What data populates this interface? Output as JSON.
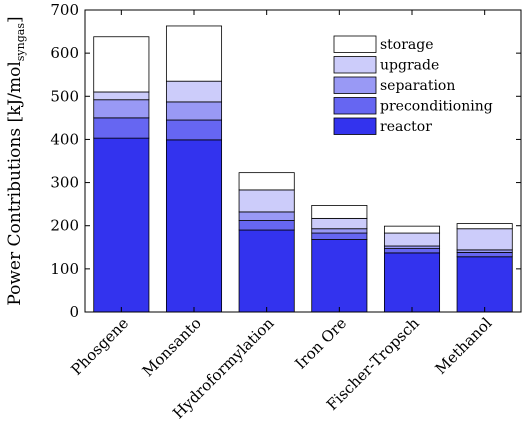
{
  "chart_data": {
    "type": "bar",
    "stacked": true,
    "categories": [
      "Phosgene",
      "Monsanto",
      "Hydroformylation",
      "Iron Ore",
      "Fischer-Tropsch",
      "Methanol"
    ],
    "series": [
      {
        "name": "reactor",
        "color": "#3333ee",
        "values": [
          403,
          399,
          190,
          168,
          137,
          128
        ]
      },
      {
        "name": "preconditioning",
        "color": "#6666f2",
        "values": [
          47,
          46,
          22,
          15,
          10,
          10
        ]
      },
      {
        "name": "separation",
        "color": "#9999f5",
        "values": [
          42,
          42,
          20,
          10,
          6,
          6
        ]
      },
      {
        "name": "upgrade",
        "color": "#ccccfa",
        "values": [
          18,
          48,
          51,
          24,
          30,
          49
        ]
      },
      {
        "name": "storage",
        "color": "#ffffff",
        "values": [
          128,
          128,
          40,
          30,
          16,
          12
        ]
      }
    ],
    "ylabel_main": "Power Contributions [kJ/mol",
    "ylabel_sub": "syngas",
    "ylabel_close": "]",
    "ylim": [
      0,
      700
    ],
    "yticks": [
      "0",
      "100",
      "200",
      "300",
      "400",
      "500",
      "600",
      "700"
    ],
    "legend_position": "top-right",
    "grid": false
  }
}
